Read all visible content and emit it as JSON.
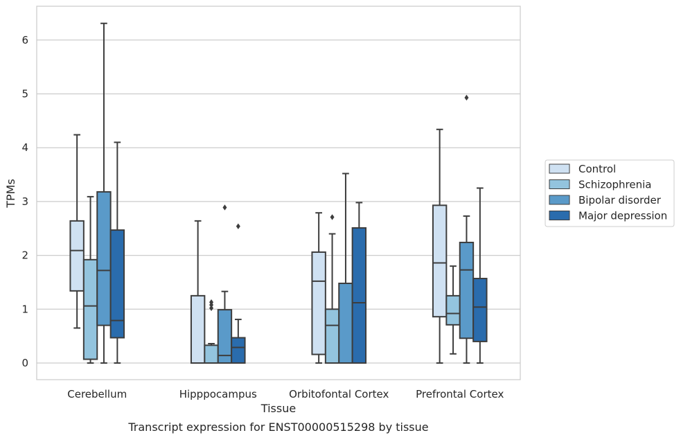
{
  "caption": "Transcript expression for ENST00000515298 by tissue",
  "chart_data": {
    "type": "boxplot",
    "xlabel": "Tissue",
    "ylabel": "TPMs",
    "ylim": [
      -0.3,
      6.65
    ],
    "yticks": [
      0,
      1,
      2,
      3,
      4,
      5,
      6
    ],
    "categories": [
      "Cerebellum",
      "Hipppocampus",
      "Orbitofontal Cortex",
      "Prefrontal Cortex"
    ],
    "grid": "horizontal",
    "legend_position": "right",
    "series": [
      {
        "name": "Control",
        "color": "#cfe1f2",
        "boxes": [
          {
            "whislo": 0.65,
            "q1": 1.34,
            "med": 2.09,
            "q3": 2.64,
            "whishi": 4.24,
            "fliers": []
          },
          {
            "whislo": 0.0,
            "q1": 0.0,
            "med": 0.0,
            "q3": 1.25,
            "whishi": 2.64,
            "fliers": []
          },
          {
            "whislo": 0.0,
            "q1": 0.16,
            "med": 1.52,
            "q3": 2.06,
            "whishi": 2.79,
            "fliers": []
          },
          {
            "whislo": 0.0,
            "q1": 0.86,
            "med": 1.86,
            "q3": 2.93,
            "whishi": 4.34,
            "fliers": []
          }
        ]
      },
      {
        "name": "Schizophrenia",
        "color": "#93c4de",
        "boxes": [
          {
            "whislo": 0.0,
            "q1": 0.07,
            "med": 1.06,
            "q3": 1.92,
            "whishi": 3.09,
            "fliers": []
          },
          {
            "whislo": 0.0,
            "q1": 0.0,
            "med": 0.0,
            "q3": 0.33,
            "whishi": 0.36,
            "fliers": [
              1.02,
              1.08,
              1.13
            ]
          },
          {
            "whislo": 0.0,
            "q1": 0.0,
            "med": 0.7,
            "q3": 1.0,
            "whishi": 2.4,
            "fliers": [
              2.71
            ]
          },
          {
            "whislo": 0.17,
            "q1": 0.71,
            "med": 0.92,
            "q3": 1.25,
            "whishi": 1.8,
            "fliers": []
          }
        ]
      },
      {
        "name": "Bipolar disorder",
        "color": "#5a9ac9",
        "boxes": [
          {
            "whislo": 0.0,
            "q1": 0.7,
            "med": 1.72,
            "q3": 3.18,
            "whishi": 6.31,
            "fliers": []
          },
          {
            "whislo": 0.0,
            "q1": 0.0,
            "med": 0.14,
            "q3": 0.99,
            "whishi": 1.33,
            "fliers": [
              2.89
            ]
          },
          {
            "whislo": 0.0,
            "q1": 0.0,
            "med": 0.0,
            "q3": 1.48,
            "whishi": 3.52,
            "fliers": []
          },
          {
            "whislo": 0.0,
            "q1": 0.46,
            "med": 1.73,
            "q3": 2.24,
            "whishi": 2.73,
            "fliers": [
              4.93
            ]
          }
        ]
      },
      {
        "name": "Major depression",
        "color": "#2a6cad",
        "boxes": [
          {
            "whislo": 0.0,
            "q1": 0.47,
            "med": 0.79,
            "q3": 2.47,
            "whishi": 4.1,
            "fliers": []
          },
          {
            "whislo": 0.0,
            "q1": 0.0,
            "med": 0.29,
            "q3": 0.47,
            "whishi": 0.81,
            "fliers": [
              2.54
            ]
          },
          {
            "whislo": 0.0,
            "q1": 0.0,
            "med": 1.12,
            "q3": 2.51,
            "whishi": 2.98,
            "fliers": []
          },
          {
            "whislo": 0.0,
            "q1": 0.4,
            "med": 1.04,
            "q3": 1.57,
            "whishi": 3.25,
            "fliers": []
          }
        ]
      }
    ]
  }
}
